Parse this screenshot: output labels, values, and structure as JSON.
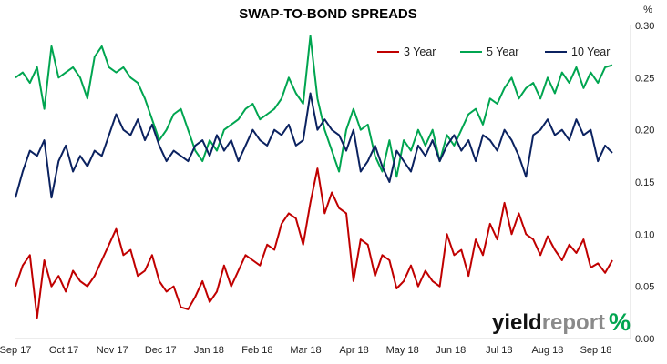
{
  "chart_data": {
    "type": "line",
    "title": "SWAP-TO-BOND SPREADS",
    "y_unit": "%",
    "ylim": [
      0,
      0.3
    ],
    "y_ticks": [
      "0.00",
      "0.05",
      "0.10",
      "0.15",
      "0.20",
      "0.25",
      "0.30"
    ],
    "x_ticks": [
      "Sep 17",
      "Oct 17",
      "Nov 17",
      "Dec 17",
      "Jan 18",
      "Feb 18",
      "Mar 18",
      "Apr 18",
      "May 18",
      "Jun 18",
      "Jul 18",
      "Aug 18",
      "Sep 18"
    ],
    "grid": false,
    "legend_position": "top-right",
    "series": [
      {
        "name": "3 Year",
        "color": "#c00000",
        "values": [
          0.05,
          0.07,
          0.08,
          0.02,
          0.075,
          0.05,
          0.06,
          0.045,
          0.065,
          0.055,
          0.05,
          0.06,
          0.075,
          0.09,
          0.105,
          0.08,
          0.085,
          0.06,
          0.065,
          0.08,
          0.055,
          0.045,
          0.05,
          0.03,
          0.028,
          0.04,
          0.055,
          0.035,
          0.045,
          0.07,
          0.05,
          0.065,
          0.08,
          0.075,
          0.07,
          0.09,
          0.085,
          0.11,
          0.12,
          0.115,
          0.09,
          0.13,
          0.163,
          0.12,
          0.14,
          0.125,
          0.12,
          0.055,
          0.095,
          0.09,
          0.06,
          0.08,
          0.075,
          0.048,
          0.055,
          0.07,
          0.05,
          0.065,
          0.055,
          0.05,
          0.1,
          0.08,
          0.085,
          0.06,
          0.095,
          0.08,
          0.11,
          0.095,
          0.13,
          0.1,
          0.12,
          0.1,
          0.095,
          0.08,
          0.098,
          0.085,
          0.075,
          0.09,
          0.082,
          0.095,
          0.068,
          0.072,
          0.063,
          0.075
        ]
      },
      {
        "name": "5 Year",
        "color": "#00a550",
        "values": [
          0.25,
          0.255,
          0.245,
          0.26,
          0.22,
          0.28,
          0.25,
          0.255,
          0.26,
          0.25,
          0.23,
          0.27,
          0.28,
          0.26,
          0.255,
          0.26,
          0.25,
          0.245,
          0.23,
          0.21,
          0.19,
          0.2,
          0.215,
          0.22,
          0.2,
          0.18,
          0.17,
          0.19,
          0.18,
          0.2,
          0.205,
          0.21,
          0.22,
          0.225,
          0.21,
          0.215,
          0.22,
          0.23,
          0.25,
          0.235,
          0.225,
          0.29,
          0.23,
          0.2,
          0.18,
          0.16,
          0.2,
          0.22,
          0.2,
          0.205,
          0.175,
          0.16,
          0.19,
          0.155,
          0.19,
          0.18,
          0.2,
          0.185,
          0.2,
          0.17,
          0.195,
          0.185,
          0.2,
          0.215,
          0.22,
          0.205,
          0.23,
          0.225,
          0.24,
          0.25,
          0.23,
          0.24,
          0.245,
          0.23,
          0.25,
          0.235,
          0.255,
          0.245,
          0.26,
          0.24,
          0.255,
          0.245,
          0.26,
          0.262
        ]
      },
      {
        "name": "10 Year",
        "color": "#0b2260",
        "values": [
          0.135,
          0.16,
          0.18,
          0.175,
          0.19,
          0.135,
          0.17,
          0.185,
          0.16,
          0.175,
          0.165,
          0.18,
          0.175,
          0.195,
          0.215,
          0.2,
          0.195,
          0.21,
          0.19,
          0.205,
          0.185,
          0.17,
          0.18,
          0.175,
          0.17,
          0.185,
          0.19,
          0.175,
          0.195,
          0.18,
          0.19,
          0.17,
          0.185,
          0.2,
          0.19,
          0.185,
          0.2,
          0.195,
          0.205,
          0.185,
          0.19,
          0.235,
          0.2,
          0.21,
          0.2,
          0.195,
          0.18,
          0.2,
          0.16,
          0.17,
          0.185,
          0.165,
          0.15,
          0.18,
          0.17,
          0.16,
          0.185,
          0.175,
          0.19,
          0.17,
          0.185,
          0.195,
          0.18,
          0.19,
          0.17,
          0.195,
          0.19,
          0.18,
          0.2,
          0.19,
          0.175,
          0.155,
          0.195,
          0.2,
          0.21,
          0.195,
          0.2,
          0.19,
          0.21,
          0.195,
          0.2,
          0.17,
          0.185,
          0.178
        ]
      }
    ]
  },
  "logo": {
    "word_dark": "yield",
    "word_light": "report",
    "symbol": "%"
  }
}
